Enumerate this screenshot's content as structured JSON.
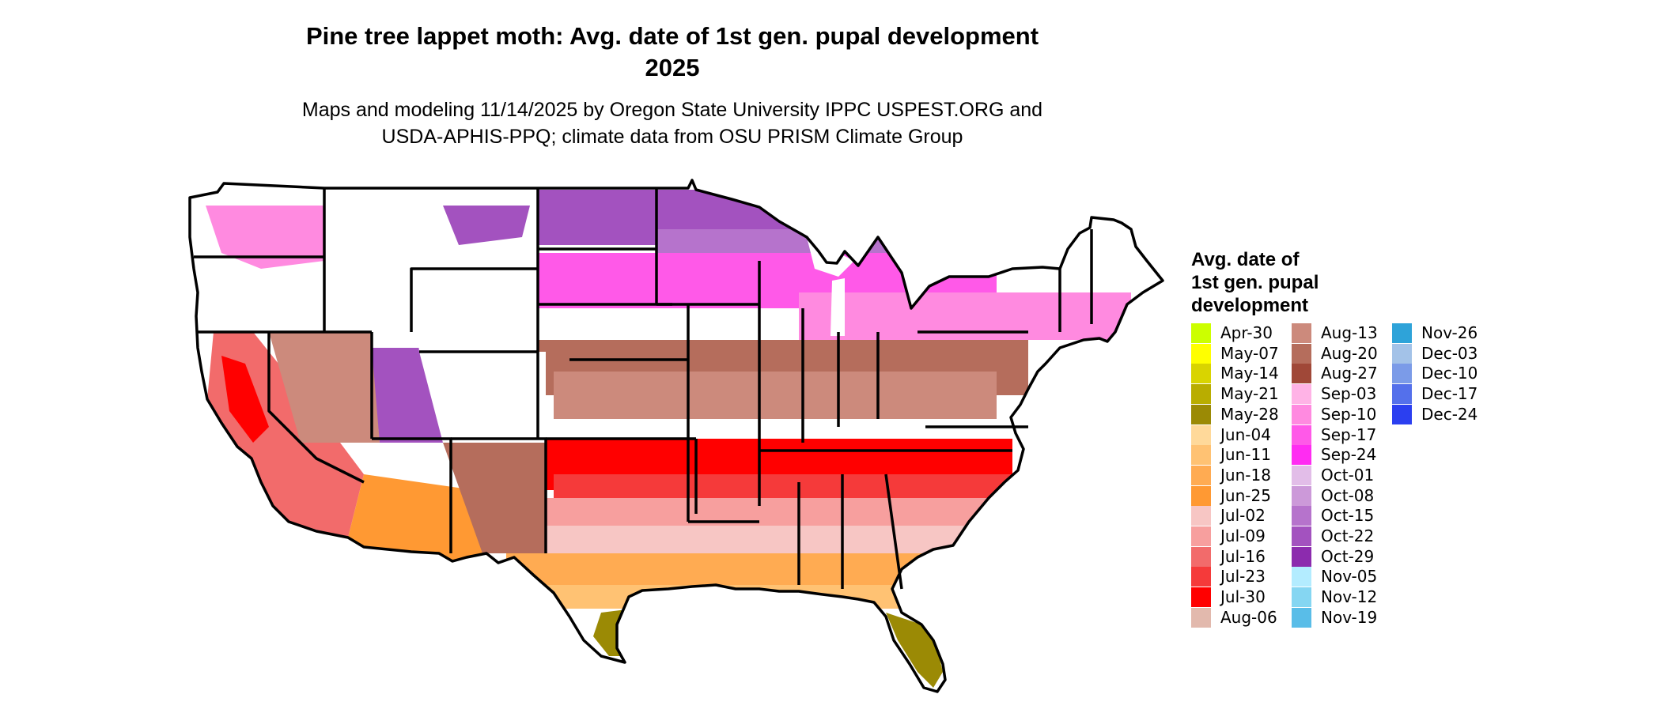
{
  "title": {
    "line1": "Pine tree lappet moth: Avg. date of 1st gen. pupal development",
    "line2": "2025"
  },
  "subtitle": {
    "line1": "Maps and modeling 11/14/2025 by Oregon State University IPPC USPEST.ORG and",
    "line2": "USDA-APHIS-PPQ; climate data from OSU PRISM Climate Group"
  },
  "legend": {
    "title_lines": [
      "Avg. date of",
      "1st gen. pupal",
      "development"
    ],
    "columns": [
      [
        {
          "label": "Apr-30",
          "color": "#ccff00"
        },
        {
          "label": "May-07",
          "color": "#ffff00"
        },
        {
          "label": "May-14",
          "color": "#d9d400"
        },
        {
          "label": "May-21",
          "color": "#b9ad00"
        },
        {
          "label": "May-28",
          "color": "#9b8a05"
        },
        {
          "label": "Jun-04",
          "color": "#ffd99a"
        },
        {
          "label": "Jun-11",
          "color": "#ffc273"
        },
        {
          "label": "Jun-18",
          "color": "#ffab52"
        },
        {
          "label": "Jun-25",
          "color": "#ff9933"
        },
        {
          "label": "Jul-02",
          "color": "#f7c6c4"
        },
        {
          "label": "Jul-09",
          "color": "#f79f9e"
        },
        {
          "label": "Jul-16",
          "color": "#f26b6b"
        },
        {
          "label": "Jul-23",
          "color": "#f53a3a"
        },
        {
          "label": "Jul-30",
          "color": "#ff0000"
        },
        {
          "label": "Aug-06",
          "color": "#e2b9ad"
        }
      ],
      [
        {
          "label": "Aug-13",
          "color": "#cc8a7c"
        },
        {
          "label": "Aug-20",
          "color": "#b56d5c"
        },
        {
          "label": "Aug-27",
          "color": "#a04838"
        },
        {
          "label": "Sep-03",
          "color": "#ffb3e6"
        },
        {
          "label": "Sep-10",
          "color": "#ff8ae0"
        },
        {
          "label": "Sep-17",
          "color": "#ff59e8"
        },
        {
          "label": "Sep-24",
          "color": "#ff2cf2"
        },
        {
          "label": "Oct-01",
          "color": "#e2bde8"
        },
        {
          "label": "Oct-08",
          "color": "#cc99d9"
        },
        {
          "label": "Oct-15",
          "color": "#b673cc"
        },
        {
          "label": "Oct-22",
          "color": "#a352bf"
        },
        {
          "label": "Oct-29",
          "color": "#8c2bae"
        },
        {
          "label": "Nov-05",
          "color": "#b3ecff"
        },
        {
          "label": "Nov-12",
          "color": "#85d6f2"
        },
        {
          "label": "Nov-19",
          "color": "#59bde8"
        }
      ],
      [
        {
          "label": "Nov-26",
          "color": "#2ea3d9"
        },
        {
          "label": "Dec-03",
          "color": "#a3c2e8"
        },
        {
          "label": "Dec-10",
          "color": "#7b9be8"
        },
        {
          "label": "Dec-17",
          "color": "#5470eb"
        },
        {
          "label": "Dec-24",
          "color": "#2b3ff0"
        }
      ]
    ]
  },
  "map_colors": {
    "border": "#000000",
    "background": "#ffffff"
  }
}
